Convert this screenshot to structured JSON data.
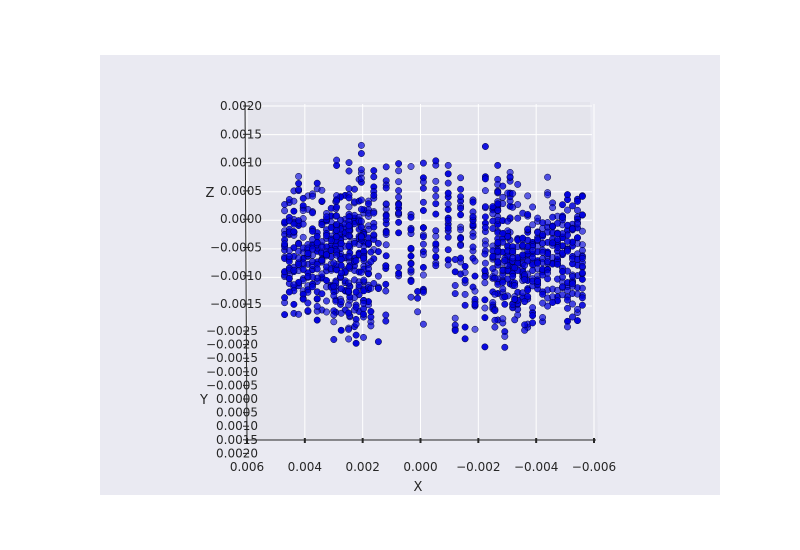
{
  "chart_data": {
    "type": "scatter",
    "projection": "3d",
    "title": "",
    "xlabel": "X",
    "ylabel": "Y",
    "zlabel": "Z",
    "xlim": [
      0.006,
      -0.006
    ],
    "ylim": [
      -0.0025,
      0.002
    ],
    "zlim": [
      -0.0015,
      0.002
    ],
    "x_ticks": [
      "0.006",
      "0.004",
      "0.002",
      "0.000",
      "−0.002",
      "−0.004",
      "−0.006"
    ],
    "y_ticks": [
      "−0.0025",
      "−0.0020",
      "−0.0015",
      "−0.0010",
      "−0.0005",
      "0.0000",
      "0.0005",
      "0.0010",
      "0.0015",
      "0.0020"
    ],
    "z_ticks": [
      "−0.0015",
      "−0.0010",
      "−0.0005",
      "0.0000",
      "0.0005",
      "0.0010",
      "0.0015",
      "0.0020"
    ],
    "grid": true,
    "colors": {
      "point": "#0000dd",
      "edge": "#000033",
      "pane": "#e4e4ec",
      "background": "#eaeaf2"
    },
    "point_groups": [
      {
        "x": [
          0.0047,
          0.0018
        ],
        "z": [
          -0.0009,
          0.0005
        ],
        "y": [
          -0.0016,
          0.0014
        ],
        "count": 380
      },
      {
        "x": [
          0.0029,
          -0.0031
        ],
        "z": [
          -0.0004,
          0.00105
        ],
        "y": [
          -0.0016,
          0.0014
        ],
        "count": 240
      },
      {
        "x": [
          -0.0025,
          -0.0056
        ],
        "z": [
          -0.00095,
          0.0005
        ],
        "y": [
          -0.0016,
          0.0014
        ],
        "count": 380
      },
      {
        "x": [
          0.003,
          0.0012
        ],
        "z": [
          -0.0015,
          -0.0004
        ],
        "y": [
          -0.0012,
          0.0012
        ],
        "count": 60
      },
      {
        "x": [
          -0.0012,
          -0.0036
        ],
        "z": [
          -0.0015,
          -0.0004
        ],
        "y": [
          -0.0012,
          0.0012
        ],
        "count": 60
      },
      {
        "x": [
          0.0001,
          -0.0001
        ],
        "z": [
          -0.0015,
          -0.0006
        ],
        "y": [
          0.0,
          0.0
        ],
        "count": 6
      }
    ]
  }
}
